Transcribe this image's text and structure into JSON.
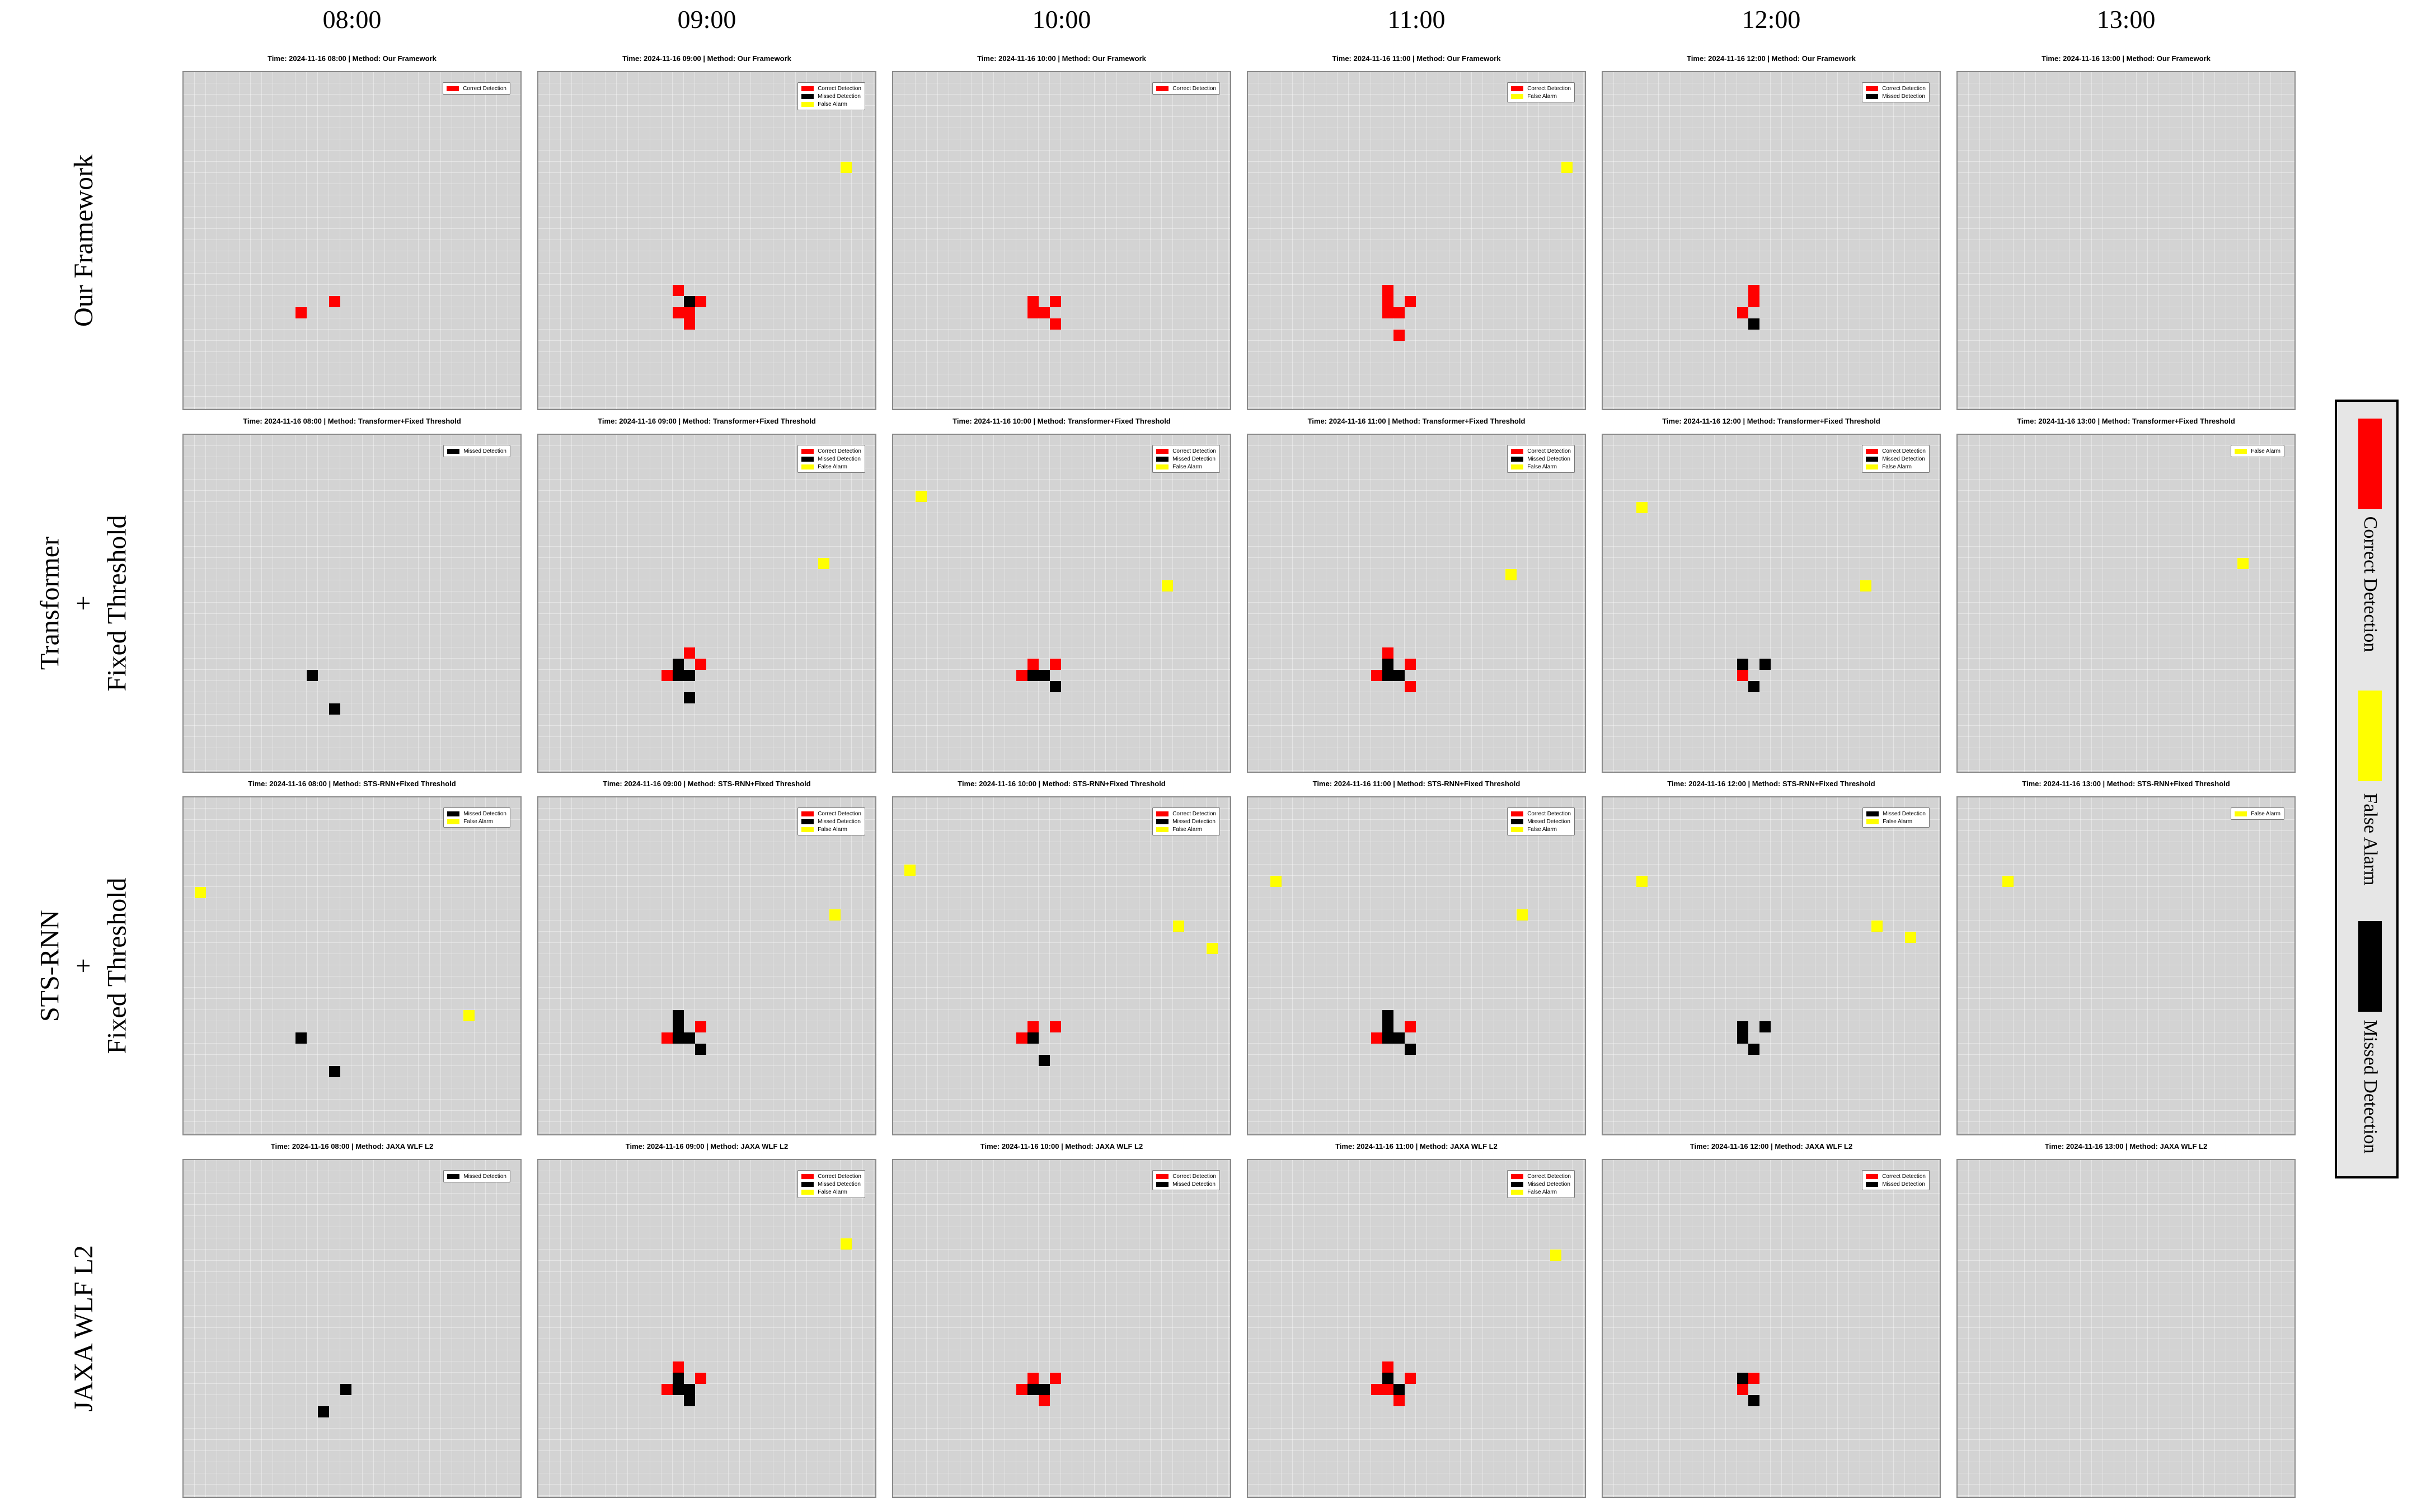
{
  "times": [
    "08:00",
    "09:00",
    "10:00",
    "11:00",
    "12:00",
    "13:00"
  ],
  "methods": [
    {
      "label": "Our Framework",
      "title_name": "Our Framework"
    },
    {
      "label": "Transformer\n+\nFixed Threshold",
      "title_name": "Transformer+Fixed Threshold"
    },
    {
      "label": "STS-RNN\n+\nFixed Threshold",
      "title_name": "STS-RNN+Fixed Threshold"
    },
    {
      "label": "JAXA WLF L2",
      "title_name": "JAXA WLF L2"
    }
  ],
  "panel_titles": [
    [
      "Time: 2024-11-16 08:00 | Method: Our Framework",
      "Time: 2024-11-16 09:00 | Method: Our Framework",
      "Time: 2024-11-16 10:00 | Method: Our Framework",
      "Time: 2024-11-16 11:00 | Method: Our Framework",
      "Time: 2024-11-16 12:00 | Method: Our Framework",
      "Time: 2024-11-16 13:00 | Method: Our Framework"
    ],
    [
      "Time: 2024-11-16 08:00 | Method: Transformer+Fixed Threshold",
      "Time: 2024-11-16 09:00 | Method: Transformer+Fixed Threshold",
      "Time: 2024-11-16 10:00 | Method: Transformer+Fixed Threshold",
      "Time: 2024-11-16 11:00 | Method: Transformer+Fixed Threshold",
      "Time: 2024-11-16 12:00 | Method: Transformer+Fixed Threshold",
      "Time: 2024-11-16 13:00 | Method: Transformer+Fixed Threshold"
    ],
    [
      "Time: 2024-11-16 08:00 | Method: STS-RNN+Fixed Threshold",
      "Time: 2024-11-16 09:00 | Method: STS-RNN+Fixed Threshold",
      "Time: 2024-11-16 10:00 | Method: STS-RNN+Fixed Threshold",
      "Time: 2024-11-16 11:00 | Method: STS-RNN+Fixed Threshold",
      "Time: 2024-11-16 12:00 | Method: STS-RNN+Fixed Threshold",
      "Time: 2024-11-16 13:00 | Method: STS-RNN+Fixed Threshold"
    ],
    [
      "Time: 2024-11-16 08:00 | Method: JAXA WLF L2",
      "Time: 2024-11-16 09:00 | Method: JAXA WLF L2",
      "Time: 2024-11-16 10:00 | Method: JAXA WLF L2",
      "Time: 2024-11-16 11:00 | Method: JAXA WLF L2",
      "Time: 2024-11-16 12:00 | Method: JAXA WLF L2",
      "Time: 2024-11-16 13:00 | Method: JAXA WLF L2"
    ]
  ],
  "legend": {
    "correct": {
      "label": "Correct Detection",
      "color": "#ff0000"
    },
    "false_alarm": {
      "label": "False Alarm",
      "color": "#ffff00"
    },
    "missed": {
      "label": "Missed Detection",
      "color": "#000000"
    }
  },
  "main_legend_order": [
    "correct",
    "false_alarm",
    "missed"
  ],
  "chart_data": {
    "type": "heatmap",
    "grid_size": [
      30,
      30
    ],
    "grid": true,
    "background_color": "#d3d3d3",
    "categories": [
      "correct",
      "missed",
      "false_alarm"
    ],
    "panels": [
      [
        {
          "legend": [
            "correct"
          ],
          "cells": [
            [
              13,
              20,
              "correct"
            ],
            [
              10,
              21,
              "correct"
            ]
          ]
        },
        {
          "legend": [
            "correct",
            "missed",
            "false_alarm"
          ],
          "cells": [
            [
              27,
              8,
              "false_alarm"
            ],
            [
              12,
              19,
              "correct"
            ],
            [
              13,
              20,
              "missed"
            ],
            [
              14,
              20,
              "correct"
            ],
            [
              12,
              21,
              "correct"
            ],
            [
              13,
              21,
              "correct"
            ],
            [
              13,
              22,
              "correct"
            ]
          ]
        },
        {
          "legend": [
            "correct"
          ],
          "cells": [
            [
              12,
              20,
              "correct"
            ],
            [
              14,
              20,
              "correct"
            ],
            [
              12,
              21,
              "correct"
            ],
            [
              13,
              21,
              "correct"
            ],
            [
              14,
              22,
              "correct"
            ]
          ]
        },
        {
          "legend": [
            "correct",
            "false_alarm"
          ],
          "cells": [
            [
              28,
              8,
              "false_alarm"
            ],
            [
              12,
              19,
              "correct"
            ],
            [
              12,
              20,
              "correct"
            ],
            [
              14,
              20,
              "correct"
            ],
            [
              12,
              21,
              "correct"
            ],
            [
              13,
              21,
              "correct"
            ],
            [
              13,
              23,
              "correct"
            ]
          ]
        },
        {
          "legend": [
            "correct",
            "missed"
          ],
          "cells": [
            [
              13,
              19,
              "correct"
            ],
            [
              13,
              20,
              "correct"
            ],
            [
              12,
              21,
              "correct"
            ],
            [
              13,
              22,
              "missed"
            ]
          ]
        },
        {
          "legend": [],
          "cells": []
        }
      ],
      [
        {
          "legend": [
            "missed"
          ],
          "cells": [
            [
              11,
              21,
              "missed"
            ],
            [
              13,
              24,
              "missed"
            ]
          ]
        },
        {
          "legend": [
            "correct",
            "missed",
            "false_alarm"
          ],
          "cells": [
            [
              25,
              11,
              "false_alarm"
            ],
            [
              13,
              19,
              "correct"
            ],
            [
              12,
              20,
              "missed"
            ],
            [
              14,
              20,
              "correct"
            ],
            [
              11,
              21,
              "correct"
            ],
            [
              12,
              21,
              "missed"
            ],
            [
              13,
              21,
              "missed"
            ],
            [
              13,
              23,
              "missed"
            ]
          ]
        },
        {
          "legend": [
            "correct",
            "missed",
            "false_alarm"
          ],
          "cells": [
            [
              2,
              5,
              "false_alarm"
            ],
            [
              24,
              13,
              "false_alarm"
            ],
            [
              12,
              20,
              "correct"
            ],
            [
              14,
              20,
              "correct"
            ],
            [
              11,
              21,
              "correct"
            ],
            [
              12,
              21,
              "missed"
            ],
            [
              13,
              21,
              "missed"
            ],
            [
              14,
              22,
              "missed"
            ]
          ]
        },
        {
          "legend": [
            "correct",
            "missed",
            "false_alarm"
          ],
          "cells": [
            [
              23,
              12,
              "false_alarm"
            ],
            [
              12,
              19,
              "correct"
            ],
            [
              12,
              20,
              "missed"
            ],
            [
              14,
              20,
              "correct"
            ],
            [
              11,
              21,
              "correct"
            ],
            [
              12,
              21,
              "missed"
            ],
            [
              13,
              21,
              "missed"
            ],
            [
              14,
              22,
              "correct"
            ]
          ]
        },
        {
          "legend": [
            "correct",
            "missed",
            "false_alarm"
          ],
          "cells": [
            [
              3,
              6,
              "false_alarm"
            ],
            [
              23,
              13,
              "false_alarm"
            ],
            [
              12,
              20,
              "missed"
            ],
            [
              14,
              20,
              "missed"
            ],
            [
              12,
              21,
              "correct"
            ],
            [
              13,
              22,
              "missed"
            ]
          ]
        },
        {
          "legend": [
            "false_alarm"
          ],
          "cells": [
            [
              25,
              11,
              "false_alarm"
            ]
          ]
        }
      ],
      [
        {
          "legend": [
            "missed",
            "false_alarm"
          ],
          "cells": [
            [
              1,
              8,
              "false_alarm"
            ],
            [
              25,
              19,
              "false_alarm"
            ],
            [
              10,
              21,
              "missed"
            ],
            [
              13,
              24,
              "missed"
            ]
          ]
        },
        {
          "legend": [
            "correct",
            "missed",
            "false_alarm"
          ],
          "cells": [
            [
              26,
              10,
              "false_alarm"
            ],
            [
              12,
              19,
              "missed"
            ],
            [
              12,
              20,
              "missed"
            ],
            [
              14,
              20,
              "correct"
            ],
            [
              11,
              21,
              "correct"
            ],
            [
              12,
              21,
              "missed"
            ],
            [
              13,
              21,
              "missed"
            ],
            [
              14,
              22,
              "missed"
            ]
          ]
        },
        {
          "legend": [
            "correct",
            "missed",
            "false_alarm"
          ],
          "cells": [
            [
              1,
              6,
              "false_alarm"
            ],
            [
              25,
              11,
              "false_alarm"
            ],
            [
              28,
              13,
              "false_alarm"
            ],
            [
              12,
              20,
              "correct"
            ],
            [
              14,
              20,
              "correct"
            ],
            [
              11,
              21,
              "correct"
            ],
            [
              12,
              21,
              "missed"
            ],
            [
              13,
              23,
              "missed"
            ]
          ]
        },
        {
          "legend": [
            "correct",
            "missed",
            "false_alarm"
          ],
          "cells": [
            [
              2,
              7,
              "false_alarm"
            ],
            [
              24,
              10,
              "false_alarm"
            ],
            [
              12,
              19,
              "missed"
            ],
            [
              12,
              20,
              "missed"
            ],
            [
              14,
              20,
              "correct"
            ],
            [
              11,
              21,
              "correct"
            ],
            [
              12,
              21,
              "missed"
            ],
            [
              13,
              21,
              "missed"
            ],
            [
              14,
              22,
              "missed"
            ]
          ]
        },
        {
          "legend": [
            "missed",
            "false_alarm"
          ],
          "cells": [
            [
              3,
              7,
              "false_alarm"
            ],
            [
              24,
              11,
              "false_alarm"
            ],
            [
              27,
              12,
              "false_alarm"
            ],
            [
              12,
              20,
              "missed"
            ],
            [
              14,
              20,
              "missed"
            ],
            [
              12,
              21,
              "missed"
            ],
            [
              13,
              22,
              "missed"
            ]
          ]
        },
        {
          "legend": [
            "false_alarm"
          ],
          "cells": [
            [
              4,
              7,
              "false_alarm"
            ]
          ]
        }
      ],
      [
        {
          "legend": [
            "missed"
          ],
          "cells": [
            [
              14,
              20,
              "missed"
            ],
            [
              12,
              22,
              "missed"
            ]
          ]
        },
        {
          "legend": [
            "correct",
            "missed",
            "false_alarm"
          ],
          "cells": [
            [
              27,
              7,
              "false_alarm"
            ],
            [
              12,
              18,
              "correct"
            ],
            [
              12,
              19,
              "missed"
            ],
            [
              14,
              19,
              "correct"
            ],
            [
              11,
              20,
              "correct"
            ],
            [
              12,
              20,
              "missed"
            ],
            [
              13,
              20,
              "missed"
            ],
            [
              13,
              21,
              "missed"
            ]
          ]
        },
        {
          "legend": [
            "correct",
            "missed"
          ],
          "cells": [
            [
              12,
              19,
              "correct"
            ],
            [
              14,
              19,
              "correct"
            ],
            [
              11,
              20,
              "correct"
            ],
            [
              12,
              20,
              "missed"
            ],
            [
              13,
              20,
              "missed"
            ],
            [
              13,
              21,
              "correct"
            ]
          ]
        },
        {
          "legend": [
            "correct",
            "missed",
            "false_alarm"
          ],
          "cells": [
            [
              27,
              8,
              "false_alarm"
            ],
            [
              12,
              18,
              "correct"
            ],
            [
              12,
              19,
              "missed"
            ],
            [
              14,
              19,
              "correct"
            ],
            [
              11,
              20,
              "correct"
            ],
            [
              12,
              20,
              "correct"
            ],
            [
              13,
              20,
              "missed"
            ],
            [
              13,
              21,
              "correct"
            ]
          ]
        },
        {
          "legend": [
            "correct",
            "missed"
          ],
          "cells": [
            [
              12,
              19,
              "missed"
            ],
            [
              13,
              19,
              "correct"
            ],
            [
              12,
              20,
              "correct"
            ],
            [
              13,
              21,
              "missed"
            ]
          ]
        },
        {
          "legend": [],
          "cells": []
        }
      ]
    ]
  }
}
